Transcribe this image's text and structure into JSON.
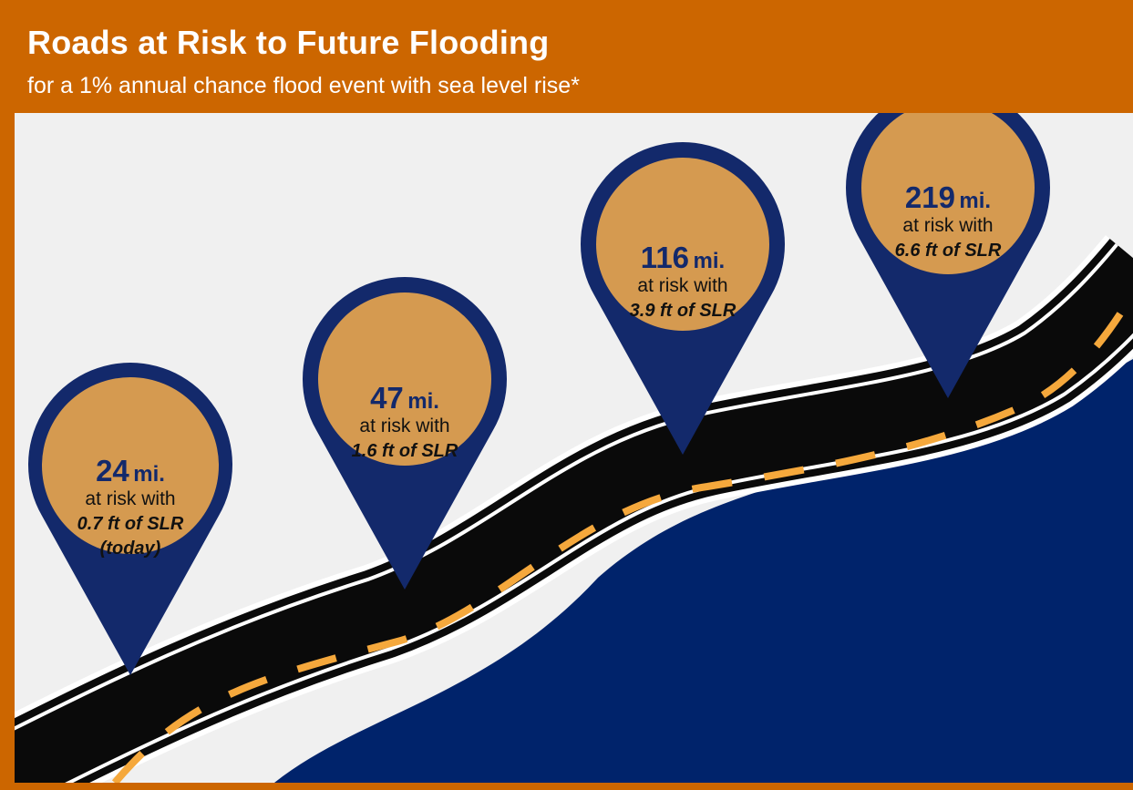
{
  "header": {
    "title": "Roads at Risk to Future Flooding",
    "subtitle": "for a 1% annual chance flood event with sea level rise*"
  },
  "markers": [
    {
      "miles": "24",
      "unit": "mi.",
      "line1": "at risk with",
      "line2": "0.7 ft of SLR",
      "line3": "(today)"
    },
    {
      "miles": "47",
      "unit": "mi.",
      "line1": "at risk with",
      "line2": "1.6 ft of SLR"
    },
    {
      "miles": "116",
      "unit": "mi.",
      "line1": "at risk with",
      "line2": "3.9 ft of SLR"
    },
    {
      "miles": "219",
      "unit": "mi.",
      "line1": "at risk with",
      "line2": "6.6 ft of SLR"
    }
  ],
  "colors": {
    "header": "#cc6600",
    "background": "#f0f0f0",
    "water": "#00236b",
    "pin": "#13296b",
    "pin_fill": "#d59a50",
    "road": "#0a0a0a",
    "road_dash": "#f5a83c"
  }
}
